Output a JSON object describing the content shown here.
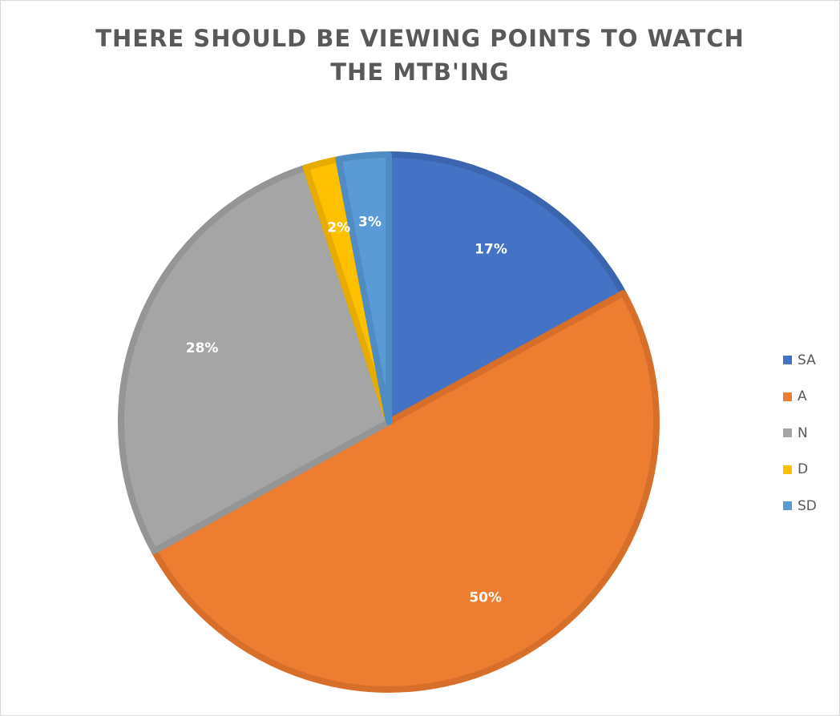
{
  "chart_data": {
    "type": "pie",
    "title_lines": [
      "THERE SHOULD BE VIEWING POINTS TO WATCH",
      "THE MTB'ING"
    ],
    "categories": [
      "SA",
      "A",
      "N",
      "D",
      "SD"
    ],
    "values": [
      17,
      50,
      28,
      2,
      3
    ],
    "data_labels": [
      "17%",
      "50%",
      "28%",
      "2%",
      "3%"
    ],
    "colors": [
      "#4472C4",
      "#ED7D31",
      "#A5A5A5",
      "#FFC000",
      "#5B9BD5"
    ],
    "edge_colors": [
      "#3C65B0",
      "#D76F2B",
      "#959595",
      "#E6AD00",
      "#4F8CC4"
    ],
    "legend_position": "right"
  }
}
